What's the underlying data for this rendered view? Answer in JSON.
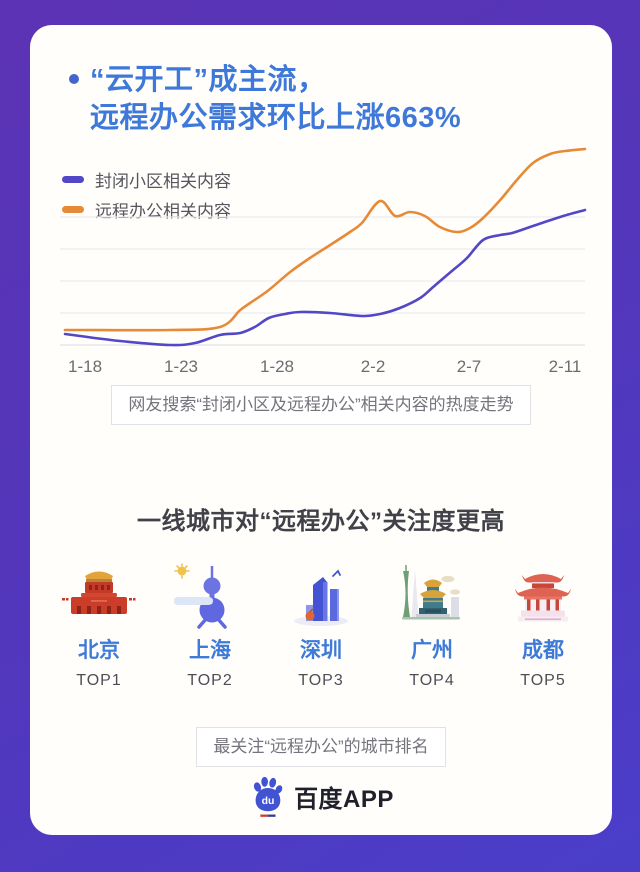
{
  "headline": {
    "line1": "“云开工”成主流，",
    "line2": "远程办公需求环比上涨663%",
    "color": "#3E79D9",
    "bullet_color": "#4565CE"
  },
  "chart": {
    "caption": "网友搜索“封闭小区及远程办公”相关内容的热度走势"
  },
  "chart_data": {
    "type": "line",
    "title": "网友搜索“封闭小区及远程办公”相关内容的热度走势",
    "x_ticks": [
      "1-18",
      "1-23",
      "1-28",
      "2-2",
      "2-7",
      "2-11"
    ],
    "x_tick_positions_pct": [
      3.85,
      22.31,
      40.77,
      59.23,
      77.69,
      96.15
    ],
    "x_unit": "percent-of-plot-width",
    "ylim": [
      0,
      100
    ],
    "grid": true,
    "gridline_values": [
      0,
      16,
      32,
      48,
      64
    ],
    "legend_position": "top-left",
    "series": [
      {
        "name": "封闭小区相关内容",
        "color": "#5247C6",
        "points": [
          [
            0,
            5.5
          ],
          [
            2.9,
            4.5
          ],
          [
            10.6,
            2
          ],
          [
            20.2,
            0
          ],
          [
            25,
            1
          ],
          [
            29.8,
            5
          ],
          [
            33.7,
            6
          ],
          [
            36.5,
            9
          ],
          [
            39.2,
            13.5
          ],
          [
            42.3,
            15.5
          ],
          [
            45.2,
            16.5
          ],
          [
            51,
            16
          ],
          [
            57.1,
            14.5
          ],
          [
            60.6,
            15.5
          ],
          [
            64.4,
            18.5
          ],
          [
            68.3,
            23.5
          ],
          [
            70.8,
            29
          ],
          [
            74.4,
            37
          ],
          [
            77.3,
            43.5
          ],
          [
            80.4,
            52.5
          ],
          [
            83.7,
            55
          ],
          [
            86,
            56
          ],
          [
            90,
            59.5
          ],
          [
            95.2,
            64
          ],
          [
            100,
            67.5
          ]
        ]
      },
      {
        "name": "远程办公相关内容",
        "color": "#E78A38",
        "points": [
          [
            0,
            7.5
          ],
          [
            2.9,
            7.5
          ],
          [
            20.2,
            7.5
          ],
          [
            29.8,
            9
          ],
          [
            33.7,
            17.5
          ],
          [
            35.6,
            21
          ],
          [
            39.2,
            27.5
          ],
          [
            43.3,
            36.5
          ],
          [
            47.1,
            43.5
          ],
          [
            51,
            50
          ],
          [
            54.8,
            56.5
          ],
          [
            57.1,
            61
          ],
          [
            60.6,
            72
          ],
          [
            63.5,
            64.5
          ],
          [
            66.3,
            66.5
          ],
          [
            69.2,
            64.5
          ],
          [
            72.1,
            59
          ],
          [
            75.4,
            56.5
          ],
          [
            77.9,
            58.5
          ],
          [
            80.4,
            63.5
          ],
          [
            83.7,
            72.5
          ],
          [
            86.9,
            82.5
          ],
          [
            90,
            91
          ],
          [
            93.3,
            95.5
          ],
          [
            96.2,
            97
          ],
          [
            100,
            98
          ]
        ]
      }
    ]
  },
  "section_cities": {
    "title": "一线城市对“远程办公”关注度更高",
    "cities": [
      {
        "name": "北京",
        "rank": "TOP1",
        "icon": "tiananmen-icon"
      },
      {
        "name": "上海",
        "rank": "TOP2",
        "icon": "oriental-pearl-tower-icon"
      },
      {
        "name": "深圳",
        "rank": "TOP3",
        "icon": "skyscraper-icon"
      },
      {
        "name": "广州",
        "rank": "TOP4",
        "icon": "memorial-hall-icon"
      },
      {
        "name": "成都",
        "rank": "TOP5",
        "icon": "pavilion-icon"
      }
    ],
    "caption": "最关注“远程办公”的城市排名"
  },
  "footer": {
    "logo_icon": "baidu-paw-icon",
    "logo_text": "百度APP"
  }
}
